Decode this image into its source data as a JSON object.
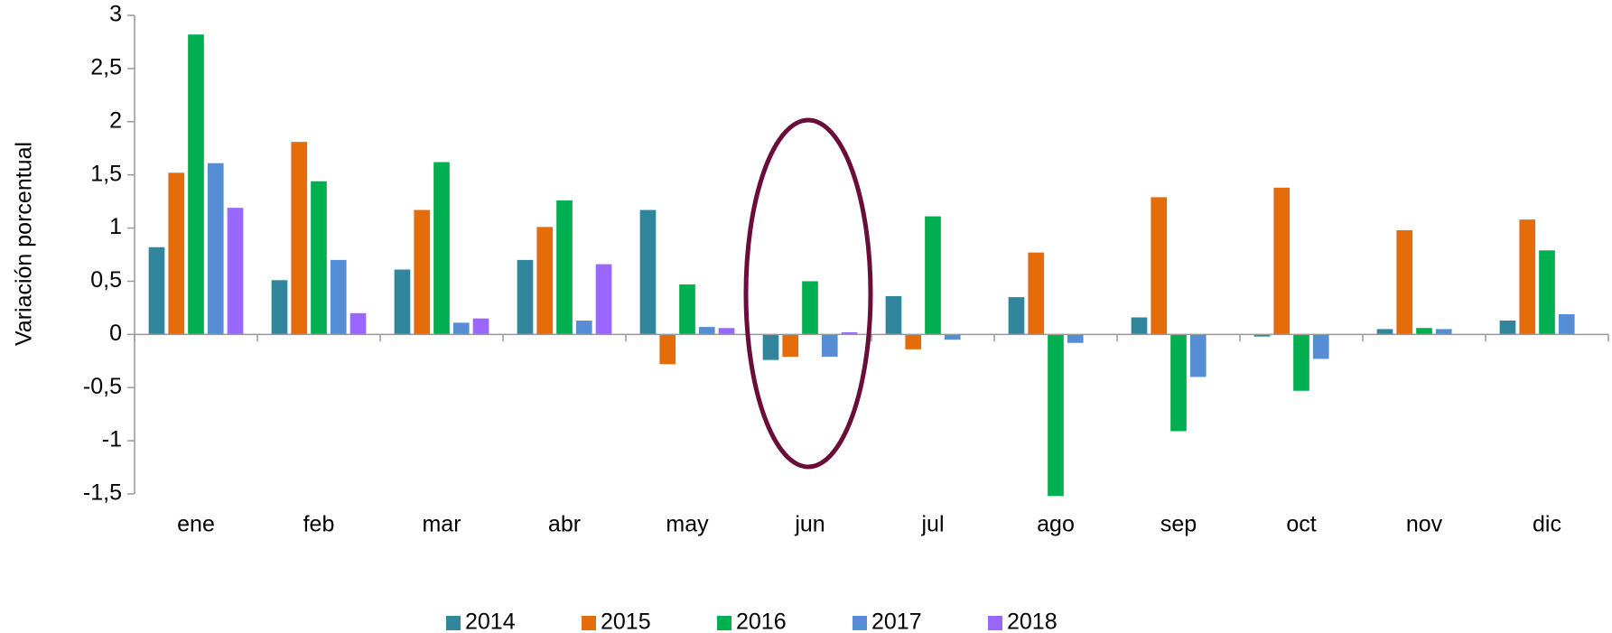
{
  "chart_data": {
    "type": "bar",
    "y_label": "Variación porcentual",
    "categories": [
      "ene",
      "feb",
      "mar",
      "abr",
      "may",
      "jun",
      "jul",
      "ago",
      "sep",
      "oct",
      "nov",
      "dic"
    ],
    "series": [
      {
        "name": "2014",
        "color": "#31859c",
        "values": [
          0.82,
          0.51,
          0.61,
          0.7,
          1.17,
          -0.24,
          0.36,
          0.35,
          0.16,
          -0.02,
          0.05,
          0.13
        ]
      },
      {
        "name": "2015",
        "color": "#e46c0a",
        "values": [
          1.52,
          1.81,
          1.17,
          1.01,
          -0.28,
          -0.21,
          -0.14,
          0.77,
          1.29,
          1.38,
          0.98,
          1.08
        ]
      },
      {
        "name": "2016",
        "color": "#00b050",
        "values": [
          2.82,
          1.44,
          1.62,
          1.26,
          0.47,
          0.5,
          1.11,
          -1.52,
          -0.91,
          -0.53,
          0.06,
          0.79
        ]
      },
      {
        "name": "2017",
        "color": "#558ed5",
        "values": [
          1.61,
          0.7,
          0.11,
          0.13,
          0.07,
          -0.21,
          -0.05,
          -0.08,
          -0.4,
          -0.23,
          0.05,
          0.19
        ]
      },
      {
        "name": "2018",
        "color": "#9966ff",
        "values": [
          1.19,
          0.2,
          0.15,
          0.66,
          0.06,
          0.02,
          null,
          null,
          null,
          null,
          null,
          null
        ]
      }
    ],
    "ylim": [
      -1.5,
      3
    ],
    "yticks": [
      {
        "value": -1.5,
        "label": "-1,5"
      },
      -1,
      {
        "value": -0.5,
        "label": "-0,5"
      },
      0,
      {
        "value": 0.5,
        "label": "0,5"
      },
      1,
      {
        "value": 1.5,
        "label": "1,5"
      },
      2,
      {
        "value": 2.5,
        "label": "2,5"
      },
      3
    ],
    "grid": false,
    "legend": "bottom"
  }
}
